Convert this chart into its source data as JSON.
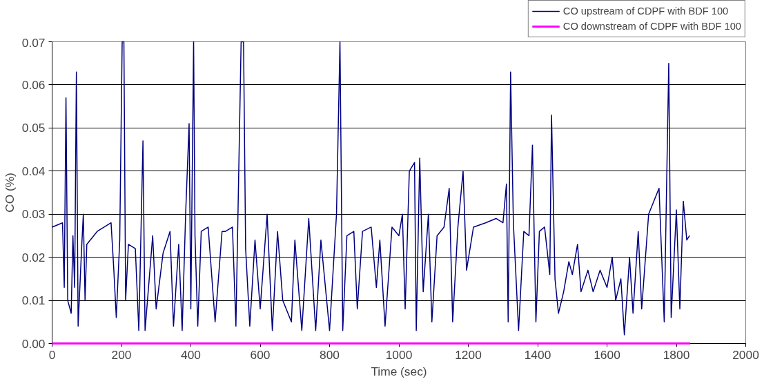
{
  "chart_data": {
    "type": "line",
    "xlabel": "Time (sec)",
    "ylabel": "CO (%)",
    "xlim": [
      0,
      2000
    ],
    "ylim": [
      0,
      0.07
    ],
    "xticks": [
      0,
      200,
      400,
      600,
      800,
      1000,
      1200,
      1400,
      1600,
      1800,
      2000
    ],
    "yticks": [
      {
        "value": 0,
        "label": "0.00"
      },
      {
        "value": 0.01,
        "label": "0.01"
      },
      {
        "value": 0.02,
        "label": "0.02"
      },
      {
        "value": 0.03,
        "label": "0.03"
      },
      {
        "value": 0.04,
        "label": "0.04"
      },
      {
        "value": 0.05,
        "label": "0.05"
      },
      {
        "value": 0.06,
        "label": "0.06"
      },
      {
        "value": 0.07,
        "label": "0.07"
      }
    ],
    "grid": "y",
    "legend": "top right",
    "marker": "none",
    "line_style": "solid",
    "series": [
      {
        "name": "CO upstream of CDPF with BDF 100",
        "color": "#000080",
        "x": [
          0,
          30,
          35,
          40,
          45,
          55,
          60,
          65,
          70,
          75,
          85,
          90,
          95,
          100,
          130,
          170,
          178,
          185,
          195,
          202,
          207,
          212,
          220,
          240,
          250,
          262,
          268,
          280,
          290,
          300,
          320,
          340,
          350,
          365,
          375,
          385,
          395,
          400,
          408,
          412,
          420,
          430,
          450,
          470,
          490,
          500,
          520,
          530,
          545,
          552,
          558,
          570,
          585,
          600,
          620,
          635,
          650,
          665,
          690,
          700,
          720,
          740,
          760,
          775,
          800,
          820,
          830,
          838,
          850,
          870,
          880,
          895,
          920,
          935,
          945,
          960,
          980,
          1000,
          1010,
          1018,
          1030,
          1045,
          1050,
          1060,
          1070,
          1085,
          1095,
          1110,
          1130,
          1145,
          1155,
          1170,
          1185,
          1195,
          1215,
          1250,
          1280,
          1300,
          1310,
          1315,
          1322,
          1330,
          1345,
          1360,
          1375,
          1385,
          1395,
          1405,
          1420,
          1435,
          1440,
          1450,
          1460,
          1475,
          1490,
          1500,
          1515,
          1525,
          1545,
          1560,
          1580,
          1600,
          1615,
          1625,
          1640,
          1650,
          1665,
          1675,
          1690,
          1700,
          1720,
          1735,
          1750,
          1765,
          1778,
          1785,
          1800,
          1810,
          1820,
          1830,
          1838
        ],
        "values": [
          0.027,
          0.028,
          0.013,
          0.057,
          0.01,
          0.007,
          0.025,
          0.013,
          0.063,
          0.004,
          0.022,
          0.03,
          0.01,
          0.023,
          0.026,
          0.028,
          0.017,
          0.006,
          0.024,
          0.07,
          0.07,
          0.01,
          0.023,
          0.022,
          0.003,
          0.047,
          0.003,
          0.015,
          0.025,
          0.008,
          0.021,
          0.026,
          0.004,
          0.023,
          0.003,
          0.03,
          0.051,
          0.008,
          0.07,
          0.025,
          0.004,
          0.026,
          0.027,
          0.005,
          0.026,
          0.026,
          0.027,
          0.004,
          0.07,
          0.07,
          0.022,
          0.004,
          0.024,
          0.008,
          0.03,
          0.003,
          0.026,
          0.01,
          0.005,
          0.024,
          0.003,
          0.029,
          0.003,
          0.024,
          0.003,
          0.03,
          0.07,
          0.003,
          0.025,
          0.026,
          0.008,
          0.026,
          0.027,
          0.013,
          0.024,
          0.004,
          0.027,
          0.025,
          0.03,
          0.008,
          0.04,
          0.042,
          0.003,
          0.043,
          0.012,
          0.03,
          0.005,
          0.025,
          0.027,
          0.036,
          0.005,
          0.027,
          0.04,
          0.017,
          0.027,
          0.028,
          0.029,
          0.028,
          0.037,
          0.005,
          0.063,
          0.028,
          0.003,
          0.026,
          0.025,
          0.046,
          0.005,
          0.026,
          0.027,
          0.016,
          0.053,
          0.015,
          0.007,
          0.012,
          0.019,
          0.016,
          0.023,
          0.012,
          0.017,
          0.012,
          0.017,
          0.013,
          0.02,
          0.01,
          0.015,
          0.002,
          0.02,
          0.007,
          0.026,
          0.008,
          0.03,
          0.033,
          0.036,
          0.005,
          0.065,
          0.006,
          0.031,
          0.008,
          0.033,
          0.024,
          0.025
        ]
      },
      {
        "name": "CO downstream of CDPF with BDF 100",
        "color": "#ff00ff",
        "x": [
          0,
          1840
        ],
        "values": [
          0,
          0
        ]
      }
    ]
  }
}
